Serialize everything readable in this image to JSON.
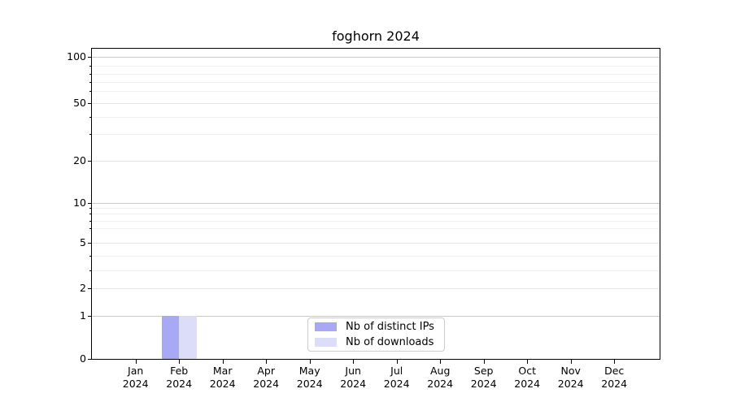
{
  "figure": {
    "background": "#ffffff",
    "text_color": "#000000",
    "grid_major_color": "#c9c9c9",
    "grid_minor_color": "#efeff0"
  },
  "chart_data": {
    "type": "bar",
    "title": "foghorn 2024",
    "xlabel": "",
    "ylabel": "",
    "categories": [
      "Jan",
      "Feb",
      "Mar",
      "Apr",
      "May",
      "Jun",
      "Jul",
      "Aug",
      "Sep",
      "Oct",
      "Nov",
      "Dec"
    ],
    "x_year_line": "2024",
    "series": [
      {
        "name": "Nb of distinct IPs",
        "color": "#a8a9f4",
        "values": [
          0,
          1,
          0,
          0,
          0,
          0,
          0,
          0,
          0,
          0,
          0,
          0
        ]
      },
      {
        "name": "Nb of downloads",
        "color": "#dcddf8",
        "values": [
          0,
          1,
          0,
          0,
          0,
          0,
          0,
          0,
          0,
          0,
          0,
          0
        ]
      }
    ],
    "y_ticks": [
      0,
      1,
      2,
      5,
      10,
      20,
      50,
      100
    ],
    "y_minor_gridlines": [
      3,
      4,
      6,
      7,
      8,
      9,
      30,
      40,
      60,
      70,
      80,
      90
    ],
    "ylim": [
      0,
      110
    ],
    "y_scale": "log-like-with-zero",
    "grid": "horizontal only",
    "legend": {
      "entries": [
        "Nb of distinct IPs",
        "Nb of downloads"
      ],
      "position": "inside axes, lower center"
    }
  }
}
